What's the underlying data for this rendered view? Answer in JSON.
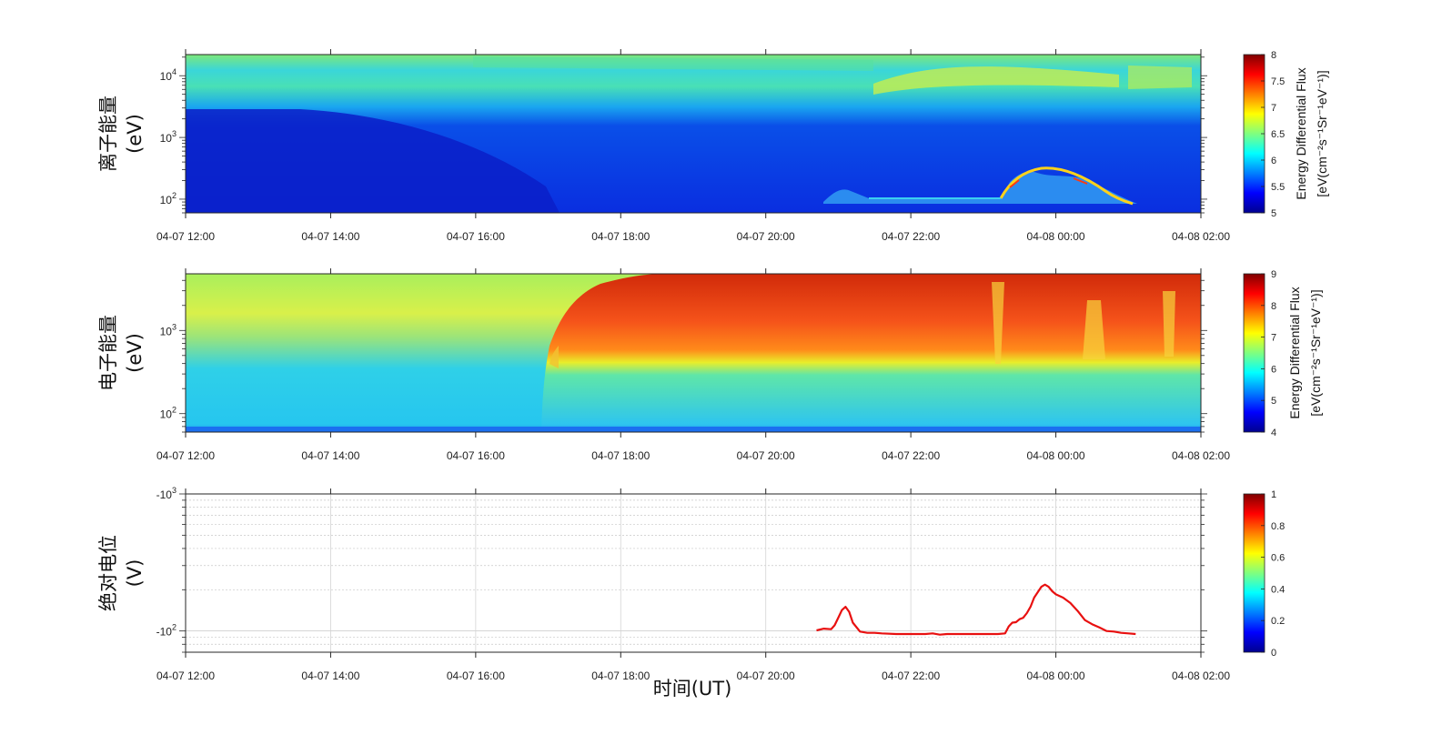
{
  "chart_data": [
    {
      "type": "heatmap",
      "ylabel_line1": "离子能量",
      "ylabel_line2": "(eV)",
      "y_scale": "log",
      "ylim": [
        60,
        22000
      ],
      "y_ticks": [
        {
          "value": 100,
          "base": "10",
          "exp": "2"
        },
        {
          "value": 1000,
          "base": "10",
          "exp": "3"
        },
        {
          "value": 10000,
          "base": "10",
          "exp": "4"
        }
      ],
      "x_range_hours": [
        12,
        26
      ],
      "x_tick_hours": [
        12,
        14,
        16,
        18,
        20,
        22,
        24,
        26
      ],
      "x_tick_labels": [
        "04-07 12:00",
        "04-07 14:00",
        "04-07 16:00",
        "04-07 18:00",
        "04-07 20:00",
        "04-07 22:00",
        "04-08 00:00",
        "04-08 02:00"
      ],
      "colorbar": {
        "label_line1": "Energy Differential Flux",
        "label_line2": "[eV(cm⁻²s⁻¹Sr⁻¹eV⁻¹)]",
        "range": [
          5,
          8
        ],
        "ticks": [
          "5",
          "5.5",
          "6",
          "6.5",
          "7",
          "7.5",
          "8"
        ]
      },
      "colormap": "jet"
    },
    {
      "type": "heatmap",
      "ylabel_line1": "电子能量",
      "ylabel_line2": "(eV)",
      "y_scale": "log",
      "ylim": [
        60,
        4800
      ],
      "y_ticks": [
        {
          "value": 100,
          "base": "10",
          "exp": "2"
        },
        {
          "value": 1000,
          "base": "10",
          "exp": "3"
        }
      ],
      "x_range_hours": [
        12,
        26
      ],
      "x_tick_hours": [
        12,
        14,
        16,
        18,
        20,
        22,
        24,
        26
      ],
      "x_tick_labels": [
        "04-07 12:00",
        "04-07 14:00",
        "04-07 16:00",
        "04-07 18:00",
        "04-07 20:00",
        "04-07 22:00",
        "04-08 00:00",
        "04-08 02:00"
      ],
      "colorbar": {
        "label_line1": "Energy Differential Flux",
        "label_line2": "[eV(cm⁻²s⁻¹Sr⁻¹eV⁻¹)]",
        "range": [
          4,
          9
        ],
        "ticks": [
          "4",
          "5",
          "6",
          "7",
          "8",
          "9"
        ]
      },
      "colormap": "jet"
    },
    {
      "type": "line",
      "ylabel_line1": "绝对电位",
      "ylabel_line2": "(V)",
      "y_scale": "log (reversed, negative values)",
      "ylim": [
        -70,
        -1000
      ],
      "y_ticks": [
        {
          "value": -100,
          "base": "-10",
          "exp": "2"
        },
        {
          "value": -1000,
          "base": "-10",
          "exp": "3"
        }
      ],
      "x_range_hours": [
        12,
        26
      ],
      "x_tick_hours": [
        12,
        14,
        16,
        18,
        20,
        22,
        24,
        26
      ],
      "x_tick_labels": [
        "04-07 12:00",
        "04-07 14:00",
        "04-07 16:00",
        "04-07 18:00",
        "04-07 20:00",
        "04-07 22:00",
        "04-08 00:00",
        "04-08 02:00"
      ],
      "grid": true,
      "series": [
        {
          "color": "#e81010",
          "x_hours": [
            20.7,
            20.8,
            20.9,
            20.95,
            21.0,
            21.05,
            21.1,
            21.15,
            21.2,
            21.3,
            21.4,
            21.5,
            21.6,
            21.8,
            22.0,
            22.2,
            22.3,
            22.4,
            22.5,
            22.6,
            22.8,
            23.0,
            23.2,
            23.3,
            23.35,
            23.4,
            23.45,
            23.5,
            23.55,
            23.6,
            23.65,
            23.7,
            23.8,
            23.85,
            23.9,
            23.95,
            24.0,
            24.1,
            24.2,
            24.3,
            24.4,
            24.5,
            24.6,
            24.7,
            24.8,
            24.9,
            25.0,
            25.1
          ],
          "y_volts": [
            -101,
            -104,
            -103,
            -110,
            -125,
            -142,
            -150,
            -138,
            -115,
            -99,
            -97,
            -97,
            -96,
            -95,
            -95,
            -95,
            -96,
            -94,
            -95,
            -95,
            -95,
            -95,
            -95,
            -96,
            -108,
            -115,
            -116,
            -122,
            -125,
            -135,
            -150,
            -175,
            -210,
            -218,
            -210,
            -195,
            -185,
            -175,
            -160,
            -140,
            -120,
            -112,
            -106,
            -100,
            -99,
            -97,
            -96,
            -95
          ]
        }
      ],
      "colorbar": {
        "range": [
          0,
          1
        ],
        "ticks": [
          "0",
          "0.2",
          "0.4",
          "0.6",
          "0.8",
          "1"
        ]
      },
      "colormap": "jet"
    }
  ],
  "xlabel": "时间(UT)"
}
